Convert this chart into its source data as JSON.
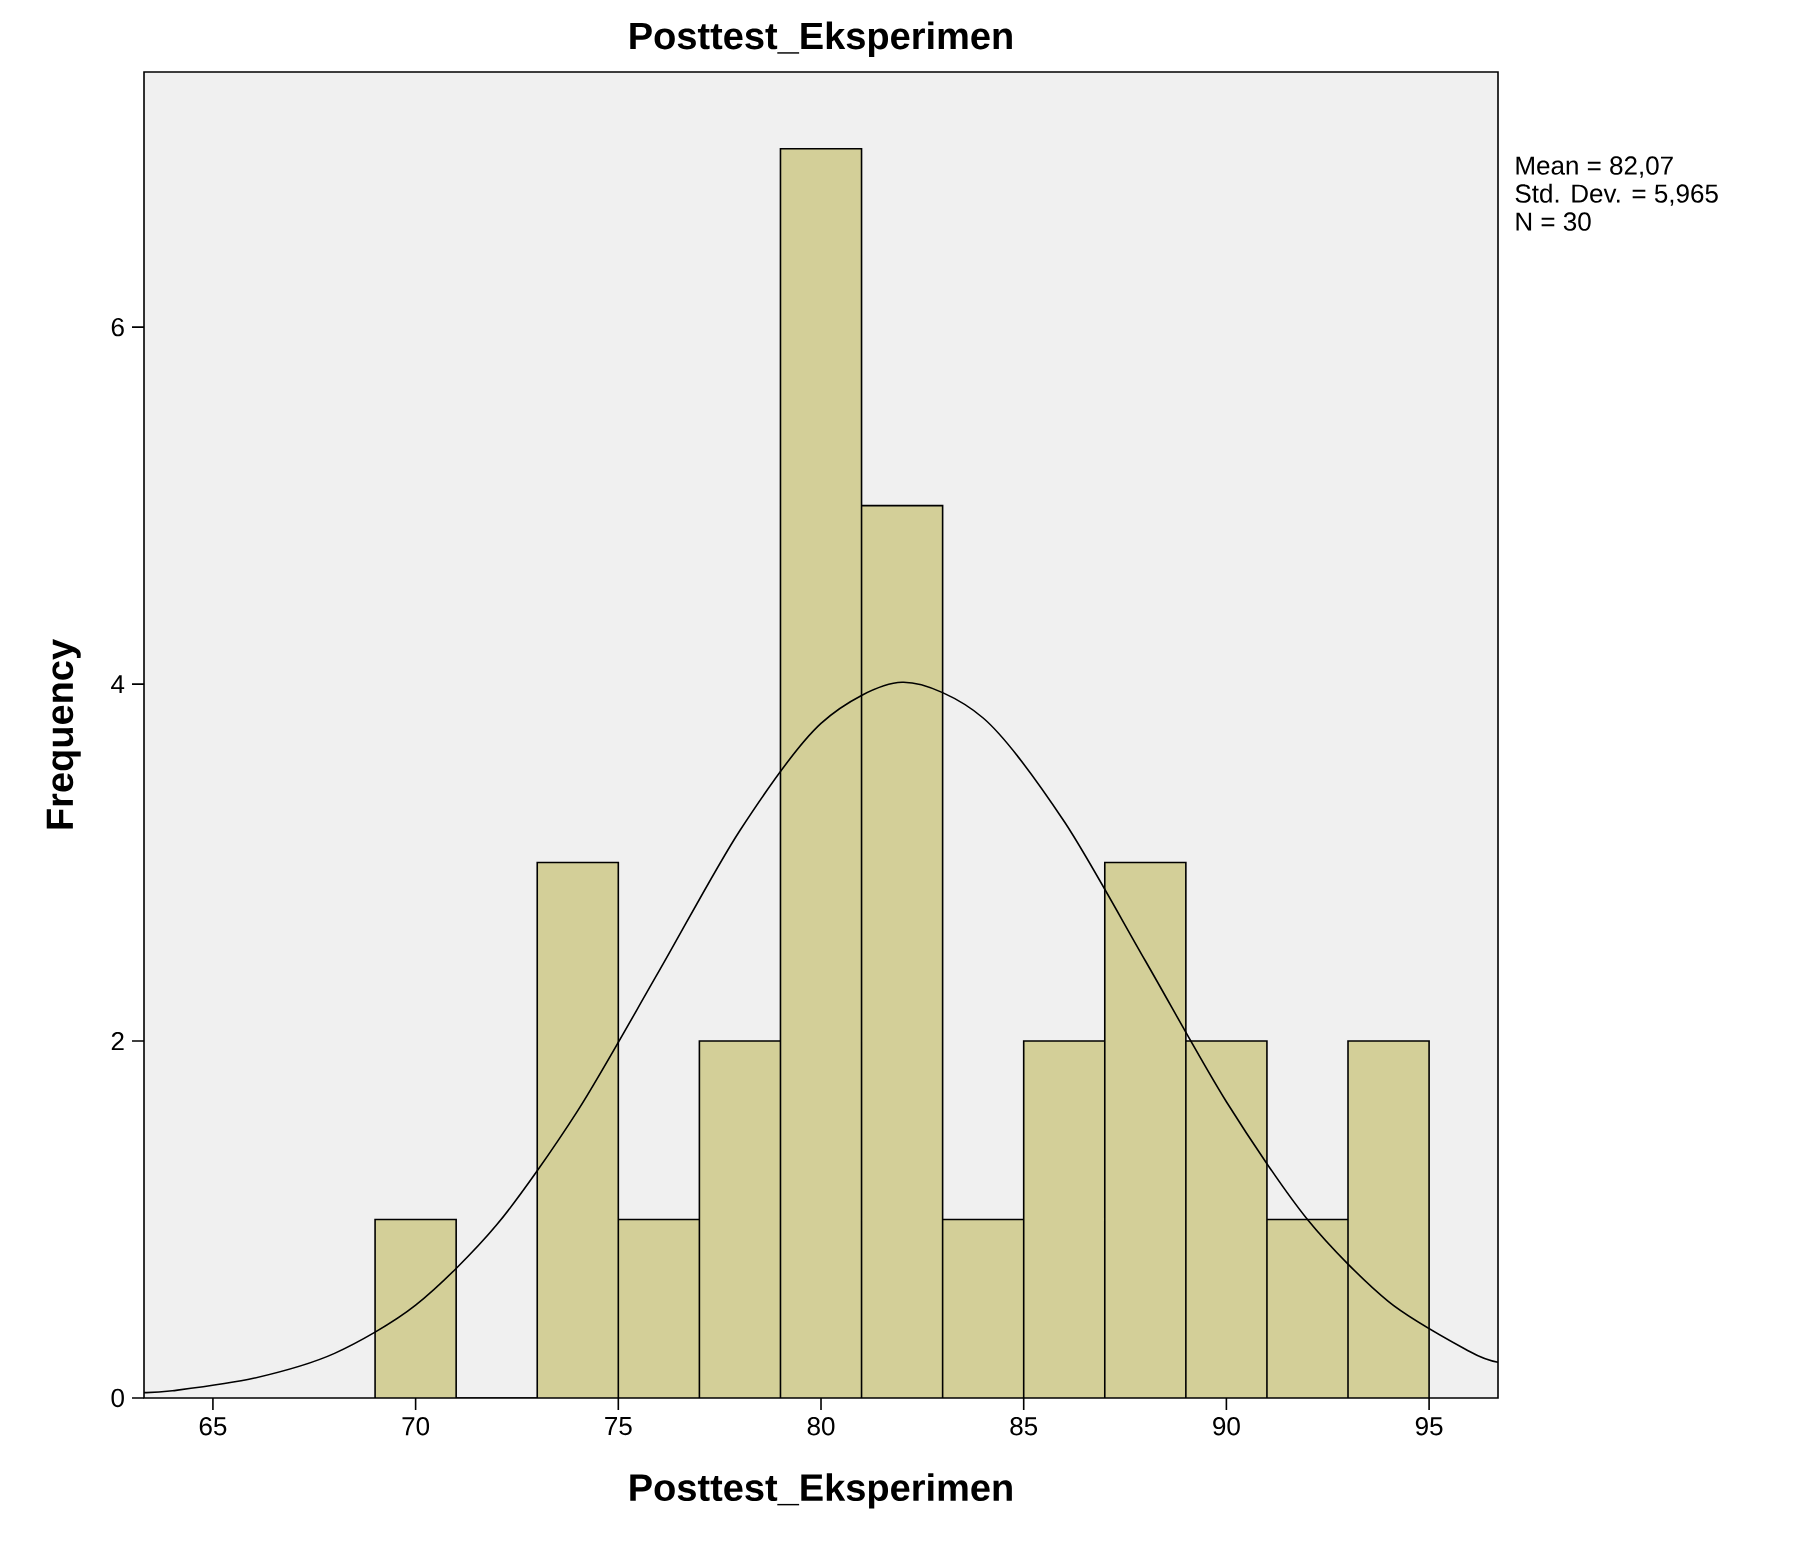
{
  "chart_data": {
    "type": "histogram",
    "title": "Posttest_Eksperimen",
    "xlabel": "Posttest_Eksperimen",
    "ylabel": "Frequency",
    "bins": [
      69,
      71,
      73,
      75,
      77,
      79,
      81,
      83,
      85,
      87,
      89,
      91,
      93,
      95
    ],
    "values": [
      1,
      0,
      3,
      1,
      2,
      7,
      5,
      1,
      2,
      3,
      2,
      1,
      2
    ],
    "color": "#d3cf98",
    "series": [
      {
        "type": "line",
        "color": "#000000",
        "x": [
          63.3,
          64,
          66,
          68,
          70,
          72,
          74,
          76,
          78,
          80,
          82,
          84,
          86,
          88,
          90,
          92,
          94,
          96,
          96.7
        ],
        "values": [
          0.03,
          0.04,
          0.11,
          0.25,
          0.52,
          0.97,
          1.61,
          2.39,
          3.18,
          3.78,
          4.01,
          3.81,
          3.23,
          2.45,
          1.66,
          1.0,
          0.54,
          0.26,
          0.2
        ]
      }
    ],
    "xlim": [
      63.3,
      96.7
    ],
    "ylim": [
      0,
      7.43
    ],
    "xticks": [
      65,
      70,
      75,
      80,
      85,
      90,
      95
    ],
    "yticks": [
      0,
      2,
      4,
      6
    ],
    "grid": false,
    "annotations": [
      "Mean = 82,07",
      "Std. Dev. = 5,965",
      "N = 30"
    ]
  }
}
